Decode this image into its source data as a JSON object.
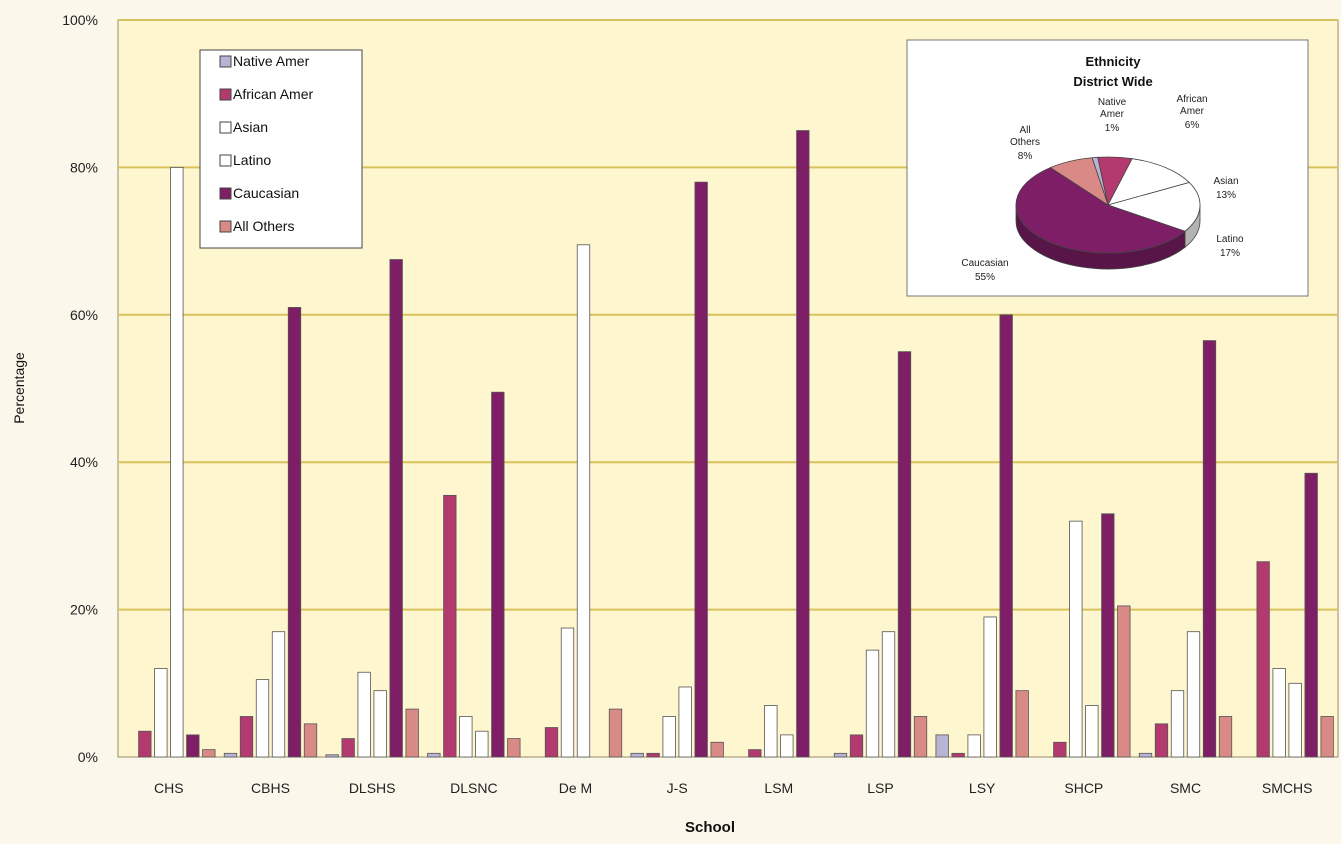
{
  "chart_data": [
    {
      "type": "bar",
      "xlabel": "School",
      "ylabel": "Percentage",
      "ylim": [
        0,
        100
      ],
      "yticks": [
        "0%",
        "20%",
        "40%",
        "60%",
        "80%",
        "100%"
      ],
      "grid": true,
      "legend_position": "top-left",
      "categories": [
        "CHS",
        "CBHS",
        "DLSHS",
        "DLSNC",
        "De M",
        "J-S",
        "LSM",
        "LSP",
        "LSY",
        "SHCP",
        "SMC",
        "SMCHS"
      ],
      "series": [
        {
          "name": "Native Amer",
          "color": "#b9b3d6",
          "values": [
            0,
            0.5,
            0.3,
            0.5,
            0,
            0.5,
            0,
            0.5,
            3,
            0,
            0.5,
            0
          ]
        },
        {
          "name": "African Amer",
          "color": "#b23a6e",
          "values": [
            3.5,
            5.5,
            2.5,
            35.5,
            4,
            0.5,
            1,
            3,
            0.5,
            2,
            4.5,
            26.5
          ]
        },
        {
          "name": "Asian",
          "color": "#ffffff",
          "values": [
            12,
            10.5,
            11.5,
            5.5,
            17.5,
            5.5,
            7,
            14.5,
            3,
            32,
            9,
            12
          ]
        },
        {
          "name": "Latino",
          "color": "#ffffff",
          "values": [
            80,
            17,
            9,
            3.5,
            69.5,
            9.5,
            3,
            17,
            19,
            7,
            17,
            10
          ]
        },
        {
          "name": "Caucasian",
          "color": "#7e1e66",
          "values": [
            3,
            61,
            67.5,
            49.5,
            0,
            78,
            85,
            55,
            60,
            33,
            56.5,
            38.5
          ]
        },
        {
          "name": "All Others",
          "color": "#d98a86",
          "values": [
            1,
            4.5,
            6.5,
            2.5,
            6.5,
            2,
            0,
            5.5,
            9,
            20.5,
            5.5,
            5.5
          ]
        }
      ]
    },
    {
      "type": "pie",
      "title": "Ethnicity",
      "subtitle": "District Wide",
      "labels": [
        "Native Amer",
        "African Amer",
        "Asian",
        "Latino",
        "Caucasian",
        "All Others"
      ],
      "values": [
        1,
        6,
        13,
        17,
        55,
        8
      ],
      "value_labels": [
        "1%",
        "6%",
        "13%",
        "17%",
        "55%",
        "8%"
      ],
      "colors": [
        "#b9b3d6",
        "#b23a6e",
        "#ffffff",
        "#ffffff",
        "#7e1e66",
        "#d98a86"
      ]
    }
  ]
}
